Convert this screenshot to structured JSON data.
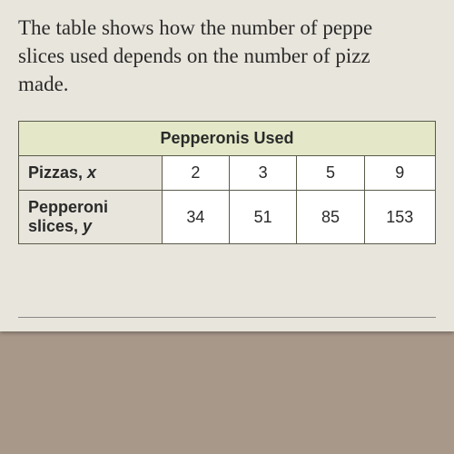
{
  "question": {
    "line1": "The table shows how the number of peppe",
    "line2": "slices used depends on the number of pizz",
    "line3": "made."
  },
  "table": {
    "title": "Pepperonis Used",
    "row1": {
      "label": "Pizzas, ",
      "var": "x",
      "values": [
        "2",
        "3",
        "5",
        "9"
      ]
    },
    "row2": {
      "label": "Pepperoni slices, ",
      "var": "y",
      "values": [
        "34",
        "51",
        "85",
        "153"
      ]
    }
  },
  "styling": {
    "page_bg": "#e8e5dc",
    "outer_bg": "#a8988a",
    "title_bg": "#e4e8c8",
    "cell_bg": "#ffffff",
    "border_color": "#5a5a4a",
    "text_color": "#2a2a2a",
    "question_fontsize": 23,
    "title_fontsize": 21,
    "cell_fontsize": 18
  }
}
